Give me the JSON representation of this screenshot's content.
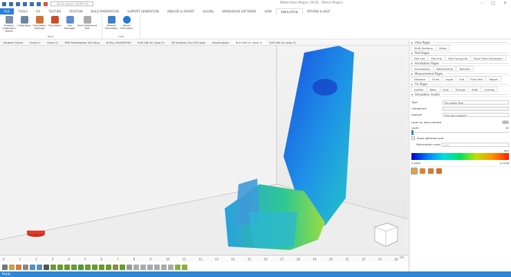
{
  "title": "Materialise Magics 24.01 - Demo Magics",
  "search_placeholder": "Quick search (Shift+Q)",
  "menu": [
    "FILE",
    "TOOLS",
    "FIX",
    "TEXTURE",
    "POSITION",
    "BUILD PREPARATION",
    "SUPPORT GENERATION",
    "ANALYZE & REPORT",
    "SLICING",
    "WAREHOUSE SOFTWARE",
    "VIEW",
    "SIMULATION",
    "OPTIONS & HELP"
  ],
  "ribbon": {
    "groups": [
      {
        "label": "Basic",
        "buttons": [
          "Prepare Calibration Builds",
          "Calibration",
          "Simulation Settings",
          "Simulation",
          "Job Manager",
          "Save Deformed Part"
        ]
      },
      {
        "label": "Help",
        "buttons": [
          "Manual Simulation",
          "About Simulation"
        ]
      }
    ],
    "colors": {
      "accent": "#2b7fd8"
    }
  },
  "scene_tabs": [
    "Modeler Scene",
    "Scene 1",
    "Scene 2",
    "EPM Sintestation 250 sbus",
    "B.Proj. DOSAPHON",
    "SLM 280 HL (step 1)",
    "3D Systems SLA 250 sbus",
    "Machinejobs",
    "SLM 280 HL (step 2)",
    "SLM 280 HL (step 3)"
  ],
  "active_scene_tab": 8,
  "ruler": {
    "unit": "cm",
    "ticks": [
      "0",
      "1",
      "2",
      "3",
      "4",
      "5",
      "6",
      "7",
      "8",
      "9",
      "10",
      "11",
      "12",
      "13",
      "14",
      "15",
      "16",
      "17",
      "18",
      "19",
      "20",
      "21",
      "22",
      "23",
      "24"
    ]
  },
  "panel": {
    "view_pages": {
      "header": "View Pages",
      "tabs": [
        "Multi-Sections",
        "Views"
      ]
    },
    "part_pages": {
      "header": "Part Pages",
      "tabs": [
        "Part List",
        "Part Info",
        "Part Fixing Info",
        "Build Time Estimation"
      ]
    },
    "annotation_pages": {
      "header": "Annotation Pages",
      "tabs": [
        "Annotations",
        "Attachments",
        "Textures"
      ]
    },
    "measurement_pages": {
      "header": "Measurement Pages",
      "tabs": [
        "Distance",
        "Circle",
        "Angle",
        "Info",
        "Rival Part",
        "Report"
      ]
    },
    "fix_pages": {
      "header": "Fix Pages",
      "tabs": [
        "Autofix",
        "Basic",
        "Hole",
        "Triangle",
        "Shell",
        "Overlap"
      ]
    },
    "simulation_results": {
      "header": "Simulation results",
      "type_label": "Type",
      "type_value": "Re-coater Risk",
      "component_label": "Component",
      "component_value": "",
      "analyze_label": "Analyze",
      "analyze_value": "Part and support",
      "layer_preview_label": "Layer by layer preview",
      "layer_label": "Layer",
      "layer_value": "42",
      "show_deformed_label": "Show deformed part",
      "deformation_scale_label": "Deformation scale",
      "deformation_scale_value": "5.00",
      "legend_unit": "mm",
      "legend_min": "0.0902",
      "legend_max": "0.1208"
    }
  },
  "status": "Ready"
}
